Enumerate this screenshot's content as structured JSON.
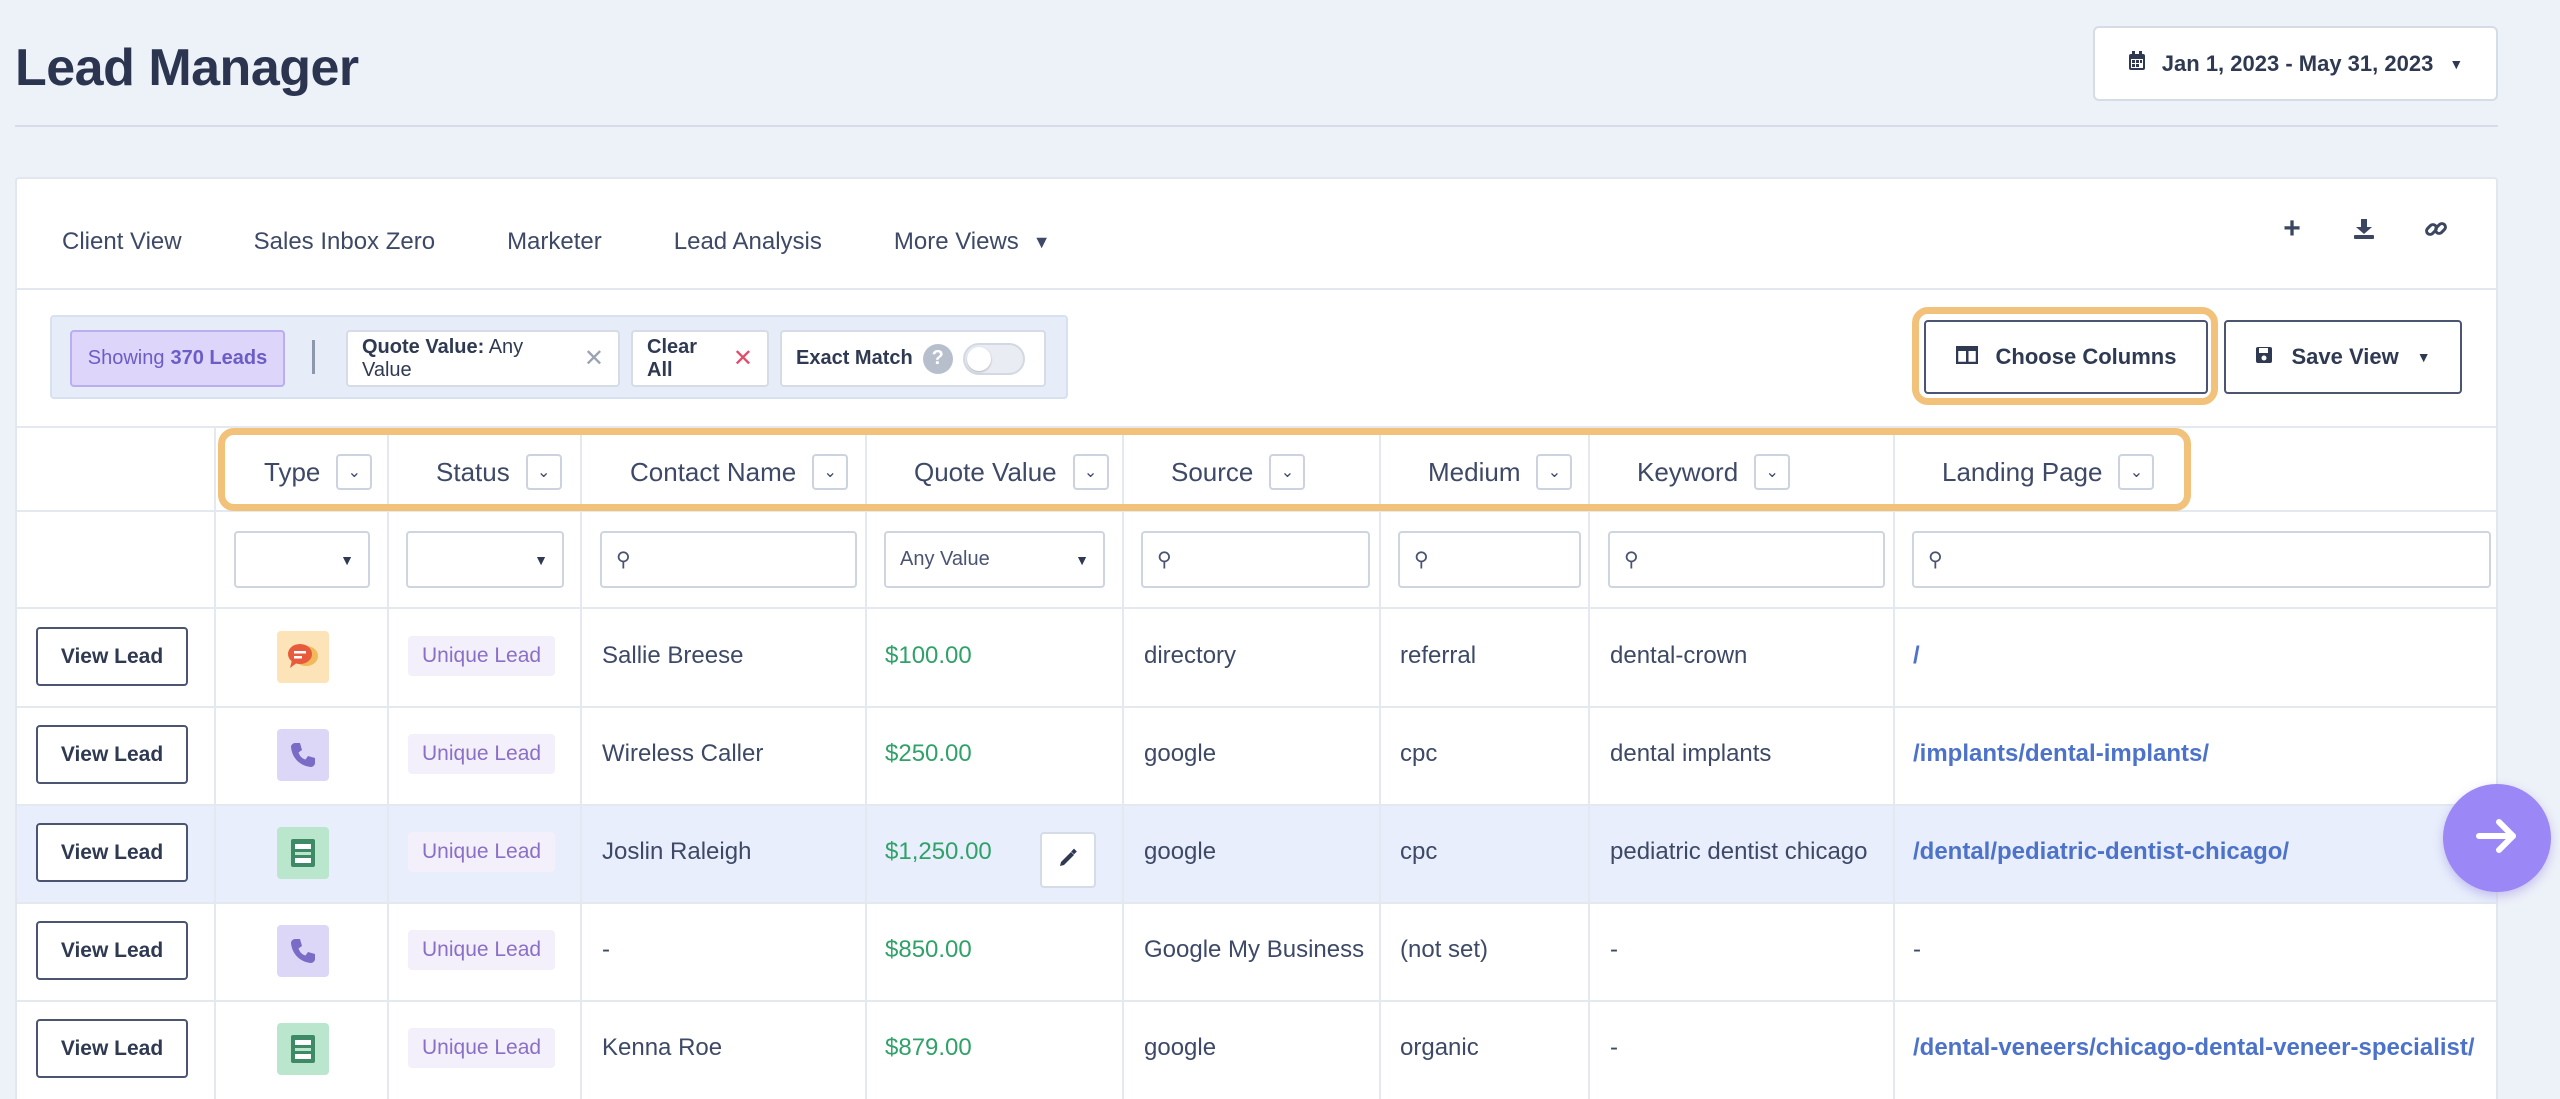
{
  "page": {
    "title": "Lead Manager"
  },
  "date_range": {
    "label": "Jan 1, 2023 - May 31, 2023"
  },
  "tabs": [
    {
      "label": "Client View"
    },
    {
      "label": "Sales Inbox Zero"
    },
    {
      "label": "Marketer"
    },
    {
      "label": "Lead Analysis"
    },
    {
      "label": "More Views"
    }
  ],
  "toolbar": {
    "icons": [
      "plus-icon",
      "download-icon",
      "link-icon"
    ]
  },
  "filters": {
    "showing_prefix": "Showing",
    "showing_count": "370 Leads",
    "quote_chip_key": "Quote Value:",
    "quote_chip_value": "Any Value",
    "clear_all": "Clear All",
    "exact_match": "Exact Match",
    "exact_match_on": false
  },
  "actions": {
    "choose_columns": "Choose Columns",
    "save_view": "Save View"
  },
  "columns": [
    {
      "label": "Type"
    },
    {
      "label": "Status"
    },
    {
      "label": "Contact Name"
    },
    {
      "label": "Quote Value"
    },
    {
      "label": "Source"
    },
    {
      "label": "Medium"
    },
    {
      "label": "Keyword"
    },
    {
      "label": "Landing Page"
    }
  ],
  "column_filters": {
    "quote_value": "Any Value"
  },
  "rows": [
    {
      "action": "View Lead",
      "type": "chat",
      "status": "Unique Lead",
      "contact": "Sallie Breese",
      "quote": "$100.00",
      "source": "directory",
      "medium": "referral",
      "keyword": "dental-crown",
      "landing": "/"
    },
    {
      "action": "View Lead",
      "type": "phone",
      "status": "Unique Lead",
      "contact": "Wireless Caller",
      "quote": "$250.00",
      "source": "google",
      "medium": "cpc",
      "keyword": "dental implants",
      "landing": "/implants/dental-implants/"
    },
    {
      "action": "View Lead",
      "type": "form",
      "status": "Unique Lead",
      "contact": "Joslin Raleigh",
      "quote": "$1,250.00",
      "source": "google",
      "medium": "cpc",
      "keyword": "pediatric dentist chicago",
      "landing": "/dental/pediatric-dentist-chicago/"
    },
    {
      "action": "View Lead",
      "type": "phone",
      "status": "Unique Lead",
      "contact": "-",
      "quote": "$850.00",
      "source": "Google My Business",
      "medium": "(not set)",
      "keyword": "-",
      "landing": "-"
    },
    {
      "action": "View Lead",
      "type": "form",
      "status": "Unique Lead",
      "contact": "Kenna Roe",
      "quote": "$879.00",
      "source": "google",
      "medium": "organic",
      "keyword": "-",
      "landing": "/dental-veneers/chicago-dental-veneer-specialist/"
    }
  ],
  "colors": {
    "accent": "#9b87f5",
    "money": "#2fa169",
    "link": "#4d72c9",
    "highlight": "#f2c27a"
  }
}
